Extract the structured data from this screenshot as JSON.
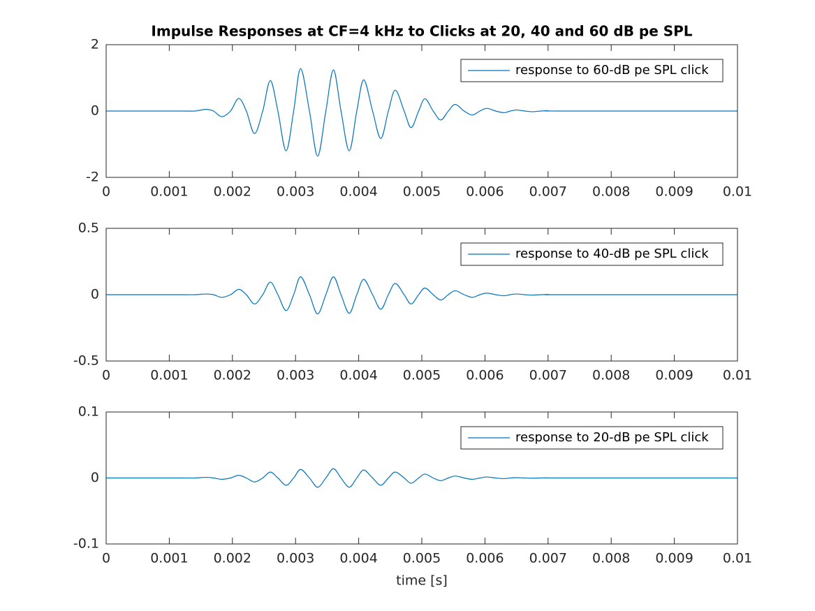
{
  "chart_data": [
    {
      "type": "line",
      "title": "Impulse Responses at CF=4 kHz to Clicks at 20, 40 and 60 dB pe SPL",
      "x": [
        0,
        0.0012,
        0.0014,
        0.00158,
        0.0017,
        0.00183,
        0.00197,
        0.0021,
        0.00222,
        0.00235,
        0.00248,
        0.0026,
        0.00272,
        0.00285,
        0.00297,
        0.00308,
        0.00322,
        0.00335,
        0.00348,
        0.0036,
        0.00372,
        0.00385,
        0.00397,
        0.00408,
        0.00422,
        0.00435,
        0.00447,
        0.00458,
        0.00472,
        0.00483,
        0.00495,
        0.00505,
        0.00518,
        0.0053,
        0.00542,
        0.00553,
        0.00567,
        0.0058,
        0.00592,
        0.00603,
        0.00617,
        0.0063,
        0.0064,
        0.0065,
        0.00663,
        0.00675,
        0.00688,
        0.007,
        0.0072,
        0.01
      ],
      "series": [
        {
          "name": "response to 60-dB pe SPL click",
          "color": "#0072bd",
          "values": [
            0,
            0,
            0,
            0.05,
            0,
            -0.17,
            0,
            0.38,
            0,
            -0.68,
            0,
            0.92,
            0,
            -1.2,
            0,
            1.28,
            0,
            -1.36,
            0,
            1.24,
            0,
            -1.2,
            0,
            0.94,
            0,
            -0.83,
            0,
            0.63,
            0,
            -0.5,
            0,
            0.37,
            0,
            -0.27,
            0,
            0.2,
            0,
            -0.12,
            0,
            0.08,
            0,
            -0.05,
            0,
            0.03,
            0,
            -0.02,
            0,
            0.01,
            0,
            0
          ]
        }
      ],
      "xlim": [
        0,
        0.01
      ],
      "ylim": [
        -2,
        2
      ],
      "xticks": [
        0,
        0.001,
        0.002,
        0.003,
        0.004,
        0.005,
        0.006,
        0.007,
        0.008,
        0.009,
        0.01
      ],
      "yticks": [
        -2,
        0,
        2
      ],
      "legend": "upper right"
    },
    {
      "type": "line",
      "x": [
        0,
        0.0012,
        0.0014,
        0.00158,
        0.0017,
        0.00183,
        0.00197,
        0.0021,
        0.00222,
        0.00235,
        0.00248,
        0.0026,
        0.00272,
        0.00285,
        0.00297,
        0.00308,
        0.00322,
        0.00335,
        0.00348,
        0.0036,
        0.00372,
        0.00385,
        0.00397,
        0.00408,
        0.00422,
        0.00435,
        0.00447,
        0.00458,
        0.00472,
        0.00483,
        0.00495,
        0.00505,
        0.00518,
        0.0053,
        0.00542,
        0.00553,
        0.00567,
        0.0058,
        0.00592,
        0.00603,
        0.00617,
        0.0063,
        0.0064,
        0.0065,
        0.00663,
        0.00675,
        0.00688,
        0.007,
        0.0072,
        0.01
      ],
      "series": [
        {
          "name": "response to 40-dB pe SPL click",
          "color": "#0072bd",
          "values": [
            0,
            0,
            0,
            0.005,
            0,
            -0.02,
            0,
            0.04,
            0,
            -0.07,
            0,
            0.095,
            0,
            -0.12,
            0,
            0.135,
            0,
            -0.145,
            0,
            0.135,
            0,
            -0.14,
            0,
            0.115,
            0,
            -0.11,
            0,
            0.085,
            0,
            -0.07,
            0,
            0.05,
            0,
            -0.04,
            0,
            0.03,
            0,
            -0.02,
            0,
            0.012,
            0,
            -0.008,
            0,
            0.005,
            0,
            -0.003,
            0,
            0.002,
            0,
            0
          ]
        }
      ],
      "xlim": [
        0,
        0.01
      ],
      "ylim": [
        -0.5,
        0.5
      ],
      "xticks": [
        0,
        0.001,
        0.002,
        0.003,
        0.004,
        0.005,
        0.006,
        0.007,
        0.008,
        0.009,
        0.01
      ],
      "yticks": [
        -0.5,
        0,
        0.5
      ],
      "legend": "upper right"
    },
    {
      "type": "line",
      "xlabel": "time [s]",
      "x": [
        0,
        0.0012,
        0.0014,
        0.00158,
        0.0017,
        0.00183,
        0.00197,
        0.0021,
        0.00222,
        0.00235,
        0.00248,
        0.0026,
        0.00272,
        0.00285,
        0.00297,
        0.00308,
        0.00322,
        0.00335,
        0.00348,
        0.0036,
        0.00372,
        0.00385,
        0.00397,
        0.00408,
        0.00422,
        0.00435,
        0.00447,
        0.00458,
        0.00472,
        0.00483,
        0.00495,
        0.00505,
        0.00518,
        0.0053,
        0.00542,
        0.00553,
        0.00567,
        0.0058,
        0.00592,
        0.00603,
        0.00617,
        0.0063,
        0.0064,
        0.0065,
        0.00663,
        0.00675,
        0.00688,
        0.007,
        0.0072,
        0.01
      ],
      "series": [
        {
          "name": "response to 20-dB pe SPL click",
          "color": "#0072bd",
          "values": [
            0,
            0,
            0,
            0.001,
            0,
            -0.002,
            0,
            0.004,
            0,
            -0.006,
            0,
            0.009,
            0,
            -0.011,
            0,
            0.013,
            0,
            -0.014,
            0,
            0.014,
            0,
            -0.014,
            0,
            0.012,
            0,
            -0.011,
            0,
            0.009,
            0,
            -0.008,
            0,
            0.006,
            0,
            -0.004,
            0,
            0.003,
            0,
            -0.002,
            0,
            0.0015,
            0,
            -0.001,
            0,
            0.0005,
            0,
            -0.0003,
            0,
            0.0002,
            0,
            0
          ]
        }
      ],
      "xlim": [
        0,
        0.01
      ],
      "ylim": [
        -0.1,
        0.1
      ],
      "xticks": [
        0,
        0.001,
        0.002,
        0.003,
        0.004,
        0.005,
        0.006,
        0.007,
        0.008,
        0.009,
        0.01
      ],
      "yticks": [
        -0.1,
        0,
        0.1
      ],
      "legend": "upper right"
    }
  ]
}
